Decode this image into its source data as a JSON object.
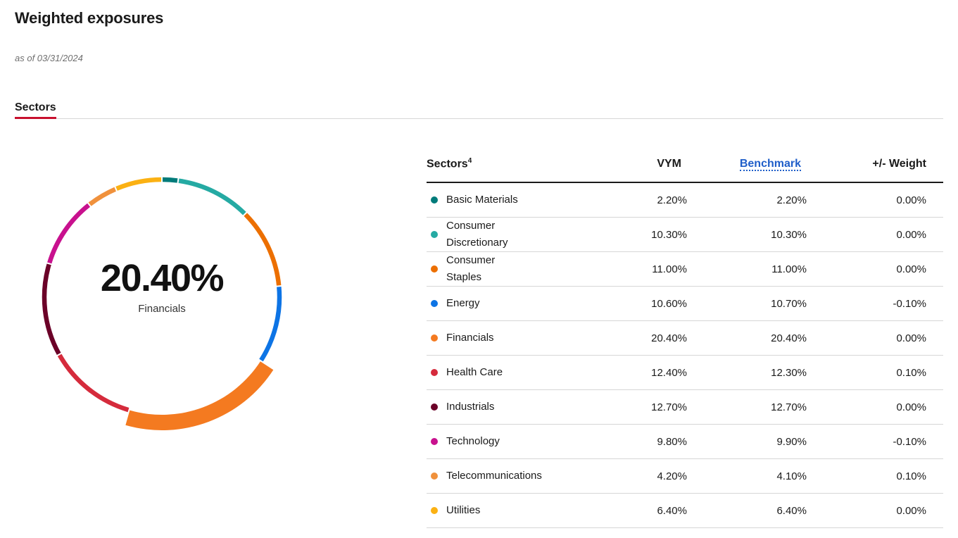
{
  "header": {
    "title": "Weighted exposures",
    "as_of": "as of 03/31/2024"
  },
  "tabs": [
    {
      "label": "Sectors",
      "active": true
    }
  ],
  "donut": {
    "highlight_value": "20.40%",
    "highlight_label": "Financials",
    "highlight_index": 4
  },
  "table": {
    "headers": {
      "sector": "Sectors",
      "sector_footnote": "4",
      "fund": "VYM",
      "benchmark": "Benchmark",
      "weight": "+/- Weight"
    },
    "rows": [
      {
        "name": "Basic Materials",
        "color": "#007b7a",
        "fund": "2.20%",
        "benchmark": "2.20%",
        "diff": "0.00%"
      },
      {
        "name": "Consumer Discretionary",
        "color": "#25aaa3",
        "fund": "10.30%",
        "benchmark": "10.30%",
        "diff": "0.00%"
      },
      {
        "name": "Consumer Staples",
        "color": "#ec6f00",
        "fund": "11.00%",
        "benchmark": "11.00%",
        "diff": "0.00%"
      },
      {
        "name": "Energy",
        "color": "#0d74e5",
        "fund": "10.60%",
        "benchmark": "10.70%",
        "diff": "-0.10%"
      },
      {
        "name": "Financials",
        "color": "#f47a20",
        "fund": "20.40%",
        "benchmark": "20.40%",
        "diff": "0.00%"
      },
      {
        "name": "Health Care",
        "color": "#d52b3c",
        "fund": "12.40%",
        "benchmark": "12.30%",
        "diff": "0.10%"
      },
      {
        "name": "Industrials",
        "color": "#6b0128",
        "fund": "12.70%",
        "benchmark": "12.70%",
        "diff": "0.00%"
      },
      {
        "name": "Technology",
        "color": "#c8118e",
        "fund": "9.80%",
        "benchmark": "9.90%",
        "diff": "-0.10%"
      },
      {
        "name": "Telecommunications",
        "color": "#f0913c",
        "fund": "4.20%",
        "benchmark": "4.10%",
        "diff": "0.10%"
      },
      {
        "name": "Utilities",
        "color": "#fbb113",
        "fund": "6.40%",
        "benchmark": "6.40%",
        "diff": "0.00%"
      }
    ]
  },
  "chart_data": {
    "type": "pie",
    "donut": true,
    "categories": [
      "Basic Materials",
      "Consumer Discretionary",
      "Consumer Staples",
      "Energy",
      "Financials",
      "Health Care",
      "Industrials",
      "Technology",
      "Telecommunications",
      "Utilities"
    ],
    "values": [
      2.2,
      10.3,
      11.0,
      10.6,
      20.4,
      12.4,
      12.7,
      9.8,
      4.2,
      6.4
    ],
    "colors": [
      "#007b7a",
      "#25aaa3",
      "#ec6f00",
      "#0d74e5",
      "#f47a20",
      "#d52b3c",
      "#6b0128",
      "#c8118e",
      "#f0913c",
      "#fbb113"
    ],
    "highlighted": "Financials",
    "title": ""
  }
}
